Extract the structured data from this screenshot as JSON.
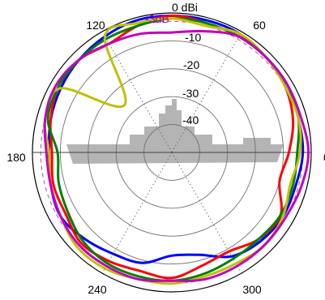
{
  "chart_data": {
    "type": "polar-line",
    "title": "",
    "radial_unit_label": "dBi",
    "radial_ticks": [
      0,
      -10,
      -20,
      -30,
      -40
    ],
    "radial_tick_labels": [
      "0 dBi",
      "-10",
      "-20",
      "-30",
      "-40"
    ],
    "radial_range": [
      -50,
      0
    ],
    "angle_labels": [
      {
        "angle": 60,
        "label": "60"
      },
      {
        "angle": 120,
        "label": "120"
      },
      {
        "angle": 180,
        "label": "180"
      },
      {
        "angle": 240,
        "label": "240"
      },
      {
        "angle": 300,
        "label": "300"
      },
      {
        "angle": 0,
        "label": "0"
      }
    ],
    "reference_circle": {
      "value_db": -3,
      "label": "-3dB",
      "color": "#c040c0"
    },
    "grid": true,
    "background_icon": "ship-silhouette-icon",
    "ship_color": "#b4b4b4",
    "angles_deg": [
      0,
      15,
      30,
      45,
      60,
      75,
      90,
      105,
      120,
      135,
      150,
      165,
      180,
      195,
      210,
      225,
      240,
      255,
      270,
      285,
      300,
      315,
      330,
      345
    ],
    "series": [
      {
        "color": "#0000ff",
        "values": [
          -3,
          -3,
          -2,
          -2,
          -1,
          -1,
          -1,
          -1,
          -2,
          -3,
          -4,
          -5,
          -6,
          -5,
          -4,
          -6,
          -8,
          -9,
          -13,
          -12,
          -7,
          -5,
          -4,
          -4
        ]
      },
      {
        "color": "#ff0000",
        "values": [
          -8,
          -5,
          -3,
          -2,
          -2,
          -2,
          -1,
          -3,
          -5,
          -3,
          -3,
          -5,
          -7,
          -6,
          -6,
          -4,
          -5,
          -6,
          -5,
          -8,
          -9,
          -6,
          -5,
          -10
        ]
      },
      {
        "color": "#008000",
        "values": [
          -5,
          -3,
          -2,
          -2,
          -2,
          -2,
          -2,
          -3,
          -3,
          -3,
          -3,
          -4,
          -9,
          -8,
          -7,
          -5,
          -4,
          -4,
          -4,
          -5,
          -6,
          -6,
          -5,
          -5
        ]
      },
      {
        "color": "#c0c000",
        "values": [
          -4,
          -3,
          -3,
          -2,
          -1,
          -3,
          -2,
          -2,
          -2,
          -26,
          -4,
          -3,
          -6,
          -5,
          -4,
          -2,
          -2,
          -3,
          -3,
          -4,
          -4,
          -3,
          -4,
          -6
        ]
      },
      {
        "color": "#c000c0",
        "values": [
          -1,
          -2,
          -2,
          -2,
          -2,
          -5,
          -7,
          -6,
          -5,
          -3,
          -2,
          -3,
          -5,
          -5,
          -4,
          -3,
          -3,
          -3,
          -4,
          -3,
          -3,
          -3,
          -3,
          -2
        ]
      }
    ]
  }
}
